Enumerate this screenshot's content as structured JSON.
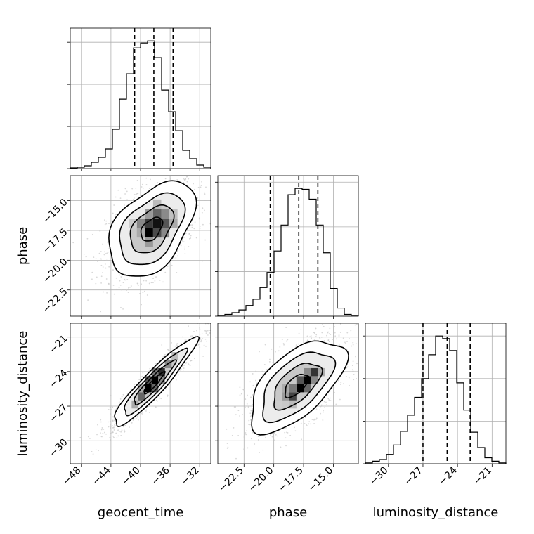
{
  "chart_data": {
    "type": "corner",
    "grid": true,
    "parameters": [
      {
        "name": "geocent_time",
        "label": "geocent_time",
        "range": [
          -49.5,
          -30.5
        ],
        "ticks": [
          -48,
          -44,
          -40,
          -36,
          -32
        ],
        "tick_labels": [
          "−48",
          "−44",
          "−40",
          "−36",
          "−32"
        ],
        "quantiles": [
          -40.8,
          -38.2,
          -35.6
        ],
        "histogram": {
          "edges": [
            -49.5,
            -48.55,
            -47.6,
            -46.65,
            -45.7,
            -44.75,
            -43.8,
            -42.85,
            -41.9,
            -40.95,
            -40.0,
            -39.05,
            -38.1,
            -37.15,
            -36.2,
            -35.25,
            -34.3,
            -33.35,
            -32.4,
            -31.45,
            -30.5
          ],
          "counts": [
            1,
            2,
            4,
            9,
            16,
            28,
            56,
            99,
            135,
            172,
            179,
            182,
            158,
            112,
            81,
            54,
            26,
            14,
            5,
            2
          ]
        },
        "hist_ticks": [
          0,
          60,
          120,
          180
        ]
      },
      {
        "name": "phase",
        "label": "phase",
        "range": [
          -24.7,
          -12.9
        ],
        "ticks": [
          -22.5,
          -20.0,
          -17.5,
          -15.0
        ],
        "tick_labels": [
          "−22.5",
          "−20.0",
          "−17.5",
          "−15.0"
        ],
        "quantiles": [
          -20.3,
          -17.9,
          -16.3
        ],
        "histogram": {
          "edges": [
            -24.7,
            -24.11,
            -23.52,
            -22.93,
            -22.34,
            -21.75,
            -21.16,
            -20.57,
            -19.98,
            -19.39,
            -18.8,
            -18.21,
            -17.62,
            -17.03,
            -16.44,
            -15.85,
            -15.26,
            -14.67,
            -14.08,
            -13.49,
            -12.9
          ],
          "counts": [
            1,
            2,
            4,
            7,
            12,
            19,
            32,
            49,
            73,
            102,
            136,
            143,
            142,
            131,
            102,
            71,
            31,
            9,
            2,
            1
          ]
        },
        "hist_ticks": [
          0,
          50,
          100,
          150
        ]
      },
      {
        "name": "luminosity_distance",
        "label": "luminosity_distance",
        "range": [
          -32.0,
          -19.8
        ],
        "ticks": [
          -30,
          -27,
          -24,
          -21
        ],
        "tick_labels": [
          "−30",
          "−27",
          "−24",
          "−21"
        ],
        "quantiles": [
          -27.0,
          -24.9,
          -22.9
        ],
        "histogram": {
          "edges": [
            -32.0,
            -31.39,
            -30.78,
            -30.17,
            -29.56,
            -28.95,
            -28.34,
            -27.73,
            -27.12,
            -26.51,
            -25.9,
            -25.29,
            -24.68,
            -24.07,
            -23.46,
            -22.85,
            -22.24,
            -21.63,
            -21.02,
            -20.41,
            -19.8
          ],
          "counts": [
            1,
            3,
            5,
            11,
            22,
            38,
            57,
            78,
            100,
            128,
            150,
            147,
            133,
            95,
            63,
            37,
            19,
            7,
            3,
            1
          ]
        },
        "hist_ticks": [
          0,
          50,
          100,
          150
        ]
      }
    ],
    "pairs": [
      {
        "x": "geocent_time",
        "y": "phase",
        "center": [
          -38.5,
          -17.4
        ],
        "sigma": [
          2.9,
          2.0
        ],
        "correlation": 0.45,
        "contour_levels": [
          0.5,
          1.0,
          1.5,
          2.0
        ],
        "density_cells": [
          {
            "x": -39.4,
            "y": -18.1,
            "w": 1.1,
            "h": 0.8,
            "shade": "#000000"
          },
          {
            "x": -38.3,
            "y": -17.3,
            "w": 1.1,
            "h": 0.8,
            "shade": "#111111"
          },
          {
            "x": -39.4,
            "y": -17.3,
            "w": 1.1,
            "h": 0.8,
            "shade": "#3a3a3a"
          },
          {
            "x": -37.2,
            "y": -17.3,
            "w": 1.1,
            "h": 0.8,
            "shade": "#555555"
          },
          {
            "x": -38.3,
            "y": -18.1,
            "w": 1.1,
            "h": 0.8,
            "shade": "#4a4a4a"
          },
          {
            "x": -38.3,
            "y": -16.5,
            "w": 1.1,
            "h": 0.8,
            "shade": "#666666"
          },
          {
            "x": -40.5,
            "y": -17.3,
            "w": 1.1,
            "h": 0.8,
            "shade": "#888888"
          },
          {
            "x": -37.2,
            "y": -16.5,
            "w": 1.1,
            "h": 0.8,
            "shade": "#8a8a8a"
          },
          {
            "x": -39.4,
            "y": -18.9,
            "w": 1.1,
            "h": 0.8,
            "shade": "#999999"
          },
          {
            "x": -36.1,
            "y": -17.3,
            "w": 1.1,
            "h": 0.8,
            "shade": "#aaaaaa"
          },
          {
            "x": -40.5,
            "y": -18.1,
            "w": 1.1,
            "h": 0.8,
            "shade": "#aaaaaa"
          },
          {
            "x": -39.4,
            "y": -16.5,
            "w": 1.1,
            "h": 0.8,
            "shade": "#9a9a9a"
          },
          {
            "x": -37.2,
            "y": -18.1,
            "w": 1.1,
            "h": 0.8,
            "shade": "#888888"
          },
          {
            "x": -38.3,
            "y": -15.7,
            "w": 1.1,
            "h": 0.8,
            "shade": "#bbbbbb"
          },
          {
            "x": -41.6,
            "y": -17.3,
            "w": 1.1,
            "h": 0.8,
            "shade": "#cccccc"
          },
          {
            "x": -36.1,
            "y": -16.5,
            "w": 1.1,
            "h": 0.8,
            "shade": "#c0c0c0"
          }
        ]
      },
      {
        "x": "geocent_time",
        "y": "luminosity_distance",
        "center": [
          -38.2,
          -25.0
        ],
        "sigma": [
          2.8,
          1.9
        ],
        "correlation": 0.93,
        "contour_levels": [
          0.5,
          1.0,
          1.5,
          2.0
        ],
        "density_cells": [
          {
            "x": -39.4,
            "y": -25.8,
            "w": 0.9,
            "h": 0.7,
            "shade": "#000000"
          },
          {
            "x": -38.5,
            "y": -25.1,
            "w": 0.9,
            "h": 0.7,
            "shade": "#000000"
          },
          {
            "x": -37.6,
            "y": -24.4,
            "w": 0.9,
            "h": 0.7,
            "shade": "#2a2a2a"
          },
          {
            "x": -40.3,
            "y": -26.5,
            "w": 0.9,
            "h": 0.7,
            "shade": "#666666"
          },
          {
            "x": -39.4,
            "y": -25.1,
            "w": 0.9,
            "h": 0.7,
            "shade": "#555555"
          },
          {
            "x": -38.5,
            "y": -25.8,
            "w": 0.9,
            "h": 0.7,
            "shade": "#666666"
          },
          {
            "x": -36.7,
            "y": -23.7,
            "w": 0.9,
            "h": 0.7,
            "shade": "#888888"
          },
          {
            "x": -37.6,
            "y": -25.1,
            "w": 0.9,
            "h": 0.7,
            "shade": "#8a8a8a"
          },
          {
            "x": -38.5,
            "y": -24.4,
            "w": 0.9,
            "h": 0.7,
            "shade": "#777777"
          },
          {
            "x": -41.2,
            "y": -27.2,
            "w": 0.9,
            "h": 0.7,
            "shade": "#aaaaaa"
          },
          {
            "x": -35.8,
            "y": -23.0,
            "w": 0.9,
            "h": 0.7,
            "shade": "#bbbbbb"
          },
          {
            "x": -40.3,
            "y": -25.8,
            "w": 0.9,
            "h": 0.7,
            "shade": "#aaaaaa"
          }
        ]
      },
      {
        "x": "phase",
        "y": "luminosity_distance",
        "center": [
          -18.1,
          -25.2
        ],
        "sigma": [
          2.0,
          2.0
        ],
        "correlation": 0.6,
        "contour_levels": [
          0.5,
          1.0,
          1.5,
          2.0
        ],
        "density_cells": [
          {
            "x": -18.1,
            "y": -25.8,
            "w": 0.6,
            "h": 0.7,
            "shade": "#000000"
          },
          {
            "x": -17.5,
            "y": -25.1,
            "w": 0.6,
            "h": 0.7,
            "shade": "#000000"
          },
          {
            "x": -18.7,
            "y": -26.5,
            "w": 0.6,
            "h": 0.7,
            "shade": "#444444"
          },
          {
            "x": -16.9,
            "y": -24.4,
            "w": 0.6,
            "h": 0.7,
            "shade": "#333333"
          },
          {
            "x": -18.1,
            "y": -25.1,
            "w": 0.6,
            "h": 0.7,
            "shade": "#555555"
          },
          {
            "x": -17.5,
            "y": -25.8,
            "w": 0.6,
            "h": 0.7,
            "shade": "#666666"
          },
          {
            "x": -18.7,
            "y": -25.8,
            "w": 0.6,
            "h": 0.7,
            "shade": "#777777"
          },
          {
            "x": -16.9,
            "y": -25.1,
            "w": 0.6,
            "h": 0.7,
            "shade": "#888888"
          },
          {
            "x": -19.3,
            "y": -26.5,
            "w": 0.6,
            "h": 0.7,
            "shade": "#9a9a9a"
          },
          {
            "x": -17.5,
            "y": -24.4,
            "w": 0.6,
            "h": 0.7,
            "shade": "#888888"
          },
          {
            "x": -19.3,
            "y": -25.8,
            "w": 0.6,
            "h": 0.7,
            "shade": "#aaaaaa"
          },
          {
            "x": -16.3,
            "y": -24.4,
            "w": 0.6,
            "h": 0.7,
            "shade": "#aaaaaa"
          },
          {
            "x": -18.7,
            "y": -27.2,
            "w": 0.6,
            "h": 0.7,
            "shade": "#bbbbbb"
          },
          {
            "x": -19.9,
            "y": -27.2,
            "w": 0.6,
            "h": 0.7,
            "shade": "#cccccc"
          }
        ]
      }
    ],
    "colors": {
      "histogram_line": "#000000",
      "quantile_line": "#000000",
      "contour_line": "#000000",
      "scatter_points": "#c8c8c8",
      "grid": "#b0b0b0",
      "contour_fill": "#ffffff"
    }
  }
}
